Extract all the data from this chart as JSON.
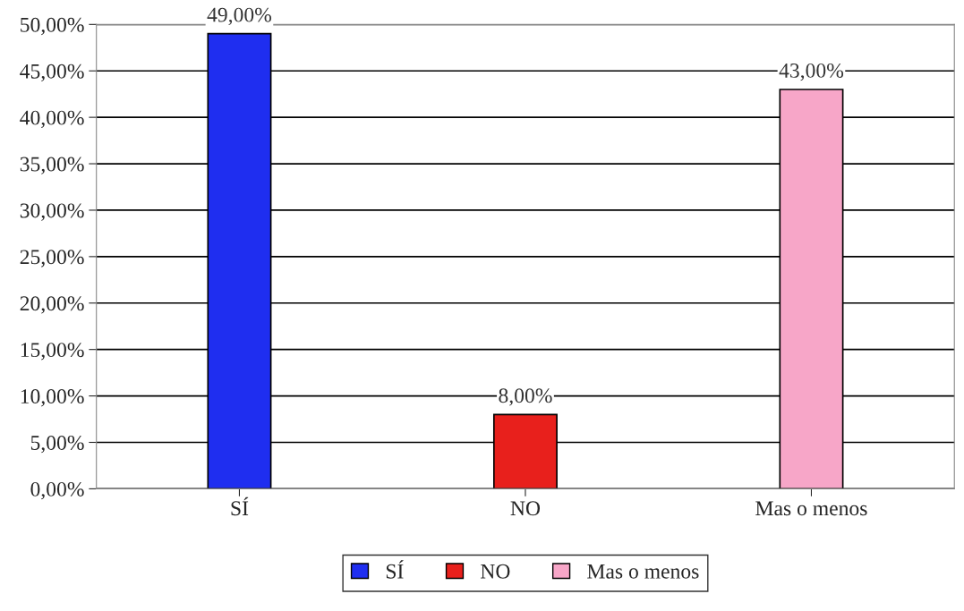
{
  "chart_data": {
    "type": "bar",
    "categories": [
      "SÍ",
      "NO",
      "Mas o menos"
    ],
    "series": [
      {
        "name": "SÍ",
        "color": "#1f2ef0",
        "values": [
          49,
          null,
          null
        ],
        "value_labels": [
          "49,00%",
          null,
          null
        ]
      },
      {
        "name": "NO",
        "color": "#e8201c",
        "values": [
          null,
          8,
          null
        ],
        "value_labels": [
          null,
          "8,00%",
          null
        ]
      },
      {
        "name": "Mas o menos",
        "color": "#f7a6c8",
        "values": [
          null,
          null,
          43
        ],
        "value_labels": [
          null,
          null,
          "43,00%"
        ]
      }
    ],
    "ylim": [
      0,
      50
    ],
    "yticks": [
      {
        "value": 0,
        "label": "0,00%"
      },
      {
        "value": 5,
        "label": "5,00%"
      },
      {
        "value": 10,
        "label": "10,00%"
      },
      {
        "value": 15,
        "label": "15,00%"
      },
      {
        "value": 20,
        "label": "20,00%"
      },
      {
        "value": 25,
        "label": "25,00%"
      },
      {
        "value": 30,
        "label": "30,00%"
      },
      {
        "value": 35,
        "label": "35,00%"
      },
      {
        "value": 40,
        "label": "40,00%"
      },
      {
        "value": 45,
        "label": "45,00%"
      },
      {
        "value": 50,
        "label": "50,00%"
      }
    ],
    "grid": "y",
    "legend": "bottom"
  }
}
